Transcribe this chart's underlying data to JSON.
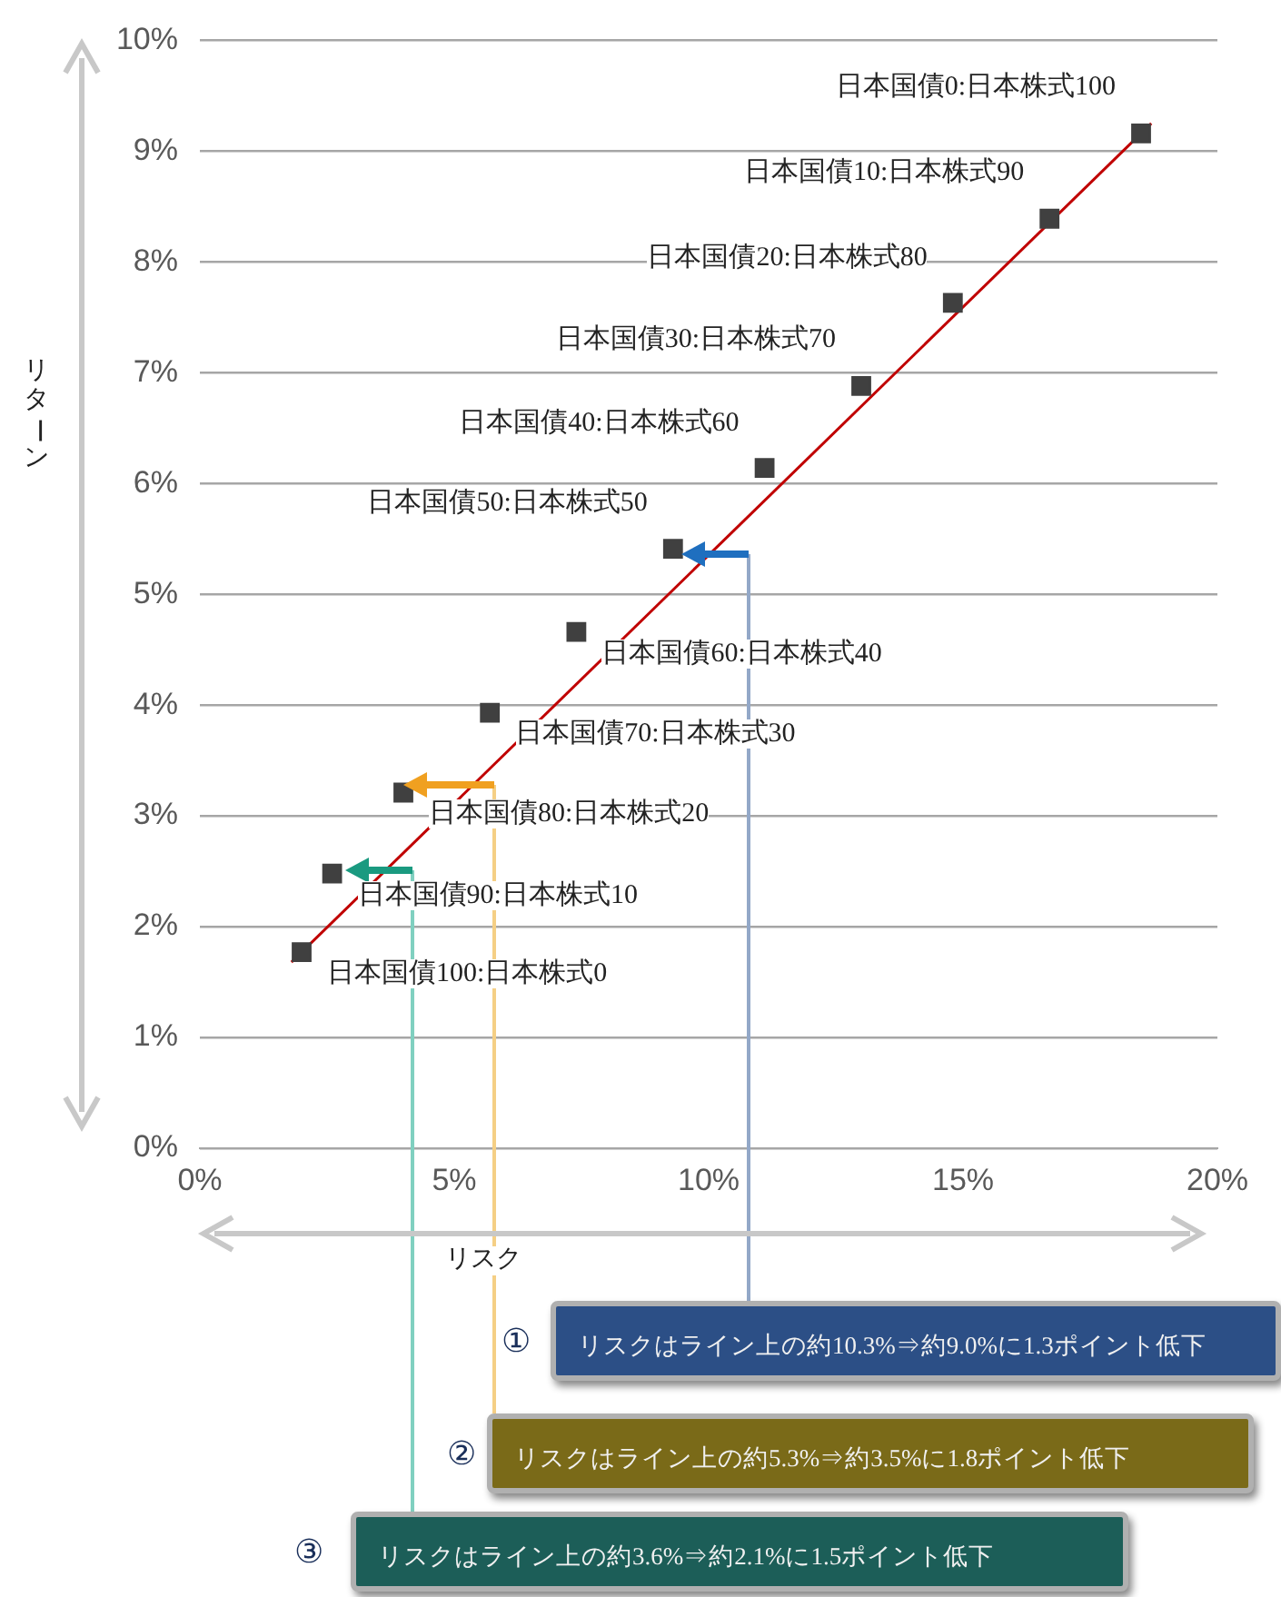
{
  "chart_data": {
    "type": "scatter",
    "xlabel": "リスク",
    "ylabel": "リターン",
    "xlim": [
      0,
      20
    ],
    "xticks": [
      {
        "value": 0,
        "label": "0%"
      },
      {
        "value": 5,
        "label": "5%"
      },
      {
        "value": 10,
        "label": "10%"
      },
      {
        "value": 15,
        "label": "15%"
      },
      {
        "value": 20,
        "label": "20%"
      }
    ],
    "ylim": [
      0,
      10
    ],
    "yticks": [
      {
        "value": 0,
        "label": "0%"
      },
      {
        "value": 1,
        "label": "1%"
      },
      {
        "value": 2,
        "label": "2%"
      },
      {
        "value": 3,
        "label": "3%"
      },
      {
        "value": 4,
        "label": "4%"
      },
      {
        "value": 5,
        "label": "5%"
      },
      {
        "value": 6,
        "label": "6%"
      },
      {
        "value": 7,
        "label": "7%"
      },
      {
        "value": 8,
        "label": "8%"
      },
      {
        "value": 9,
        "label": "9%"
      },
      {
        "value": 10,
        "label": "10%"
      }
    ],
    "grid": "y",
    "legend": false,
    "series": [
      {
        "marker": "square",
        "color": "#404040",
        "x": [
          18.5,
          16.7,
          14.8,
          13.0,
          11.1,
          9.3,
          7.4,
          5.7,
          4.0,
          2.6,
          2.0
        ],
        "values": [
          9.16,
          8.39,
          7.63,
          6.88,
          6.14,
          5.41,
          4.66,
          3.93,
          3.21,
          2.48,
          1.77
        ]
      },
      {
        "type": "line",
        "marker": "none",
        "color": "#c00000",
        "x": [
          1.8,
          18.7
        ],
        "values": [
          1.68,
          9.25
        ]
      }
    ],
    "annotations": [
      {
        "text": "日本国債0:日本株式100",
        "x": 18.5,
        "y": 9.16
      },
      {
        "text": "日本国債10:日本株式90",
        "x": 16.7,
        "y": 8.39
      },
      {
        "text": "日本国債20:日本株式80",
        "x": 14.8,
        "y": 7.63
      },
      {
        "text": "日本国債30:日本株式70",
        "x": 13.0,
        "y": 6.88
      },
      {
        "text": "日本国債40:日本株式60",
        "x": 11.1,
        "y": 6.14
      },
      {
        "text": "日本国債50:日本株式50",
        "x": 9.3,
        "y": 5.41
      },
      {
        "text": "日本国債60:日本株式40",
        "x": 7.4,
        "y": 4.66
      },
      {
        "text": "日本国債70:日本株式30",
        "x": 5.7,
        "y": 3.93
      },
      {
        "text": "日本国債80:日本株式20",
        "x": 4.0,
        "y": 3.21
      },
      {
        "text": "日本国債90:日本株式10",
        "x": 2.6,
        "y": 2.48
      },
      {
        "text": "日本国債100:日本株式0",
        "x": 2.0,
        "y": 1.77
      },
      "①",
      "リスクはライン上の約10.3%⇒約9.0%に1.3ポイント低下",
      "②",
      "リスクはライン上の約5.3%⇒約3.5%に1.8ポイント低下",
      "③",
      "リスクはライン上の約3.6%⇒約2.1%に1.5ポイント低下"
    ]
  }
}
